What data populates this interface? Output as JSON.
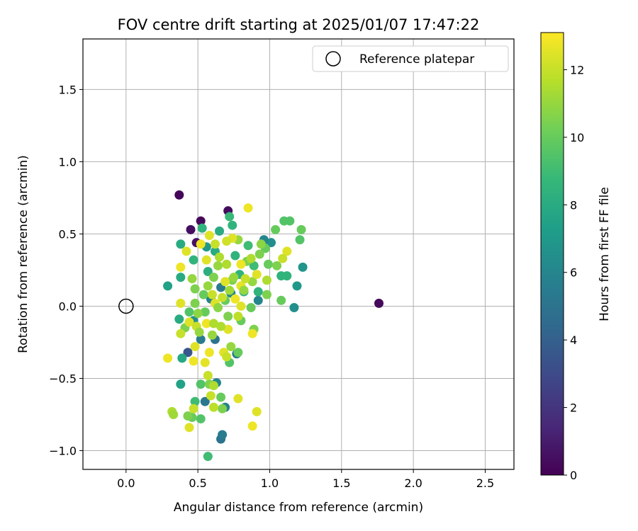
{
  "chart_data": {
    "type": "scatter",
    "title": "FOV centre drift starting at 2025/01/07 17:47:22",
    "xlabel": "Angular distance from reference (arcmin)",
    "ylabel": "Rotation from reference (arcmin)",
    "xlim": [
      -0.3,
      2.7
    ],
    "ylim": [
      -1.13,
      1.85
    ],
    "xticks": [
      0.0,
      0.5,
      1.0,
      1.5,
      2.0,
      2.5
    ],
    "xtick_labels": [
      "0.0",
      "0.5",
      "1.0",
      "1.5",
      "2.0",
      "2.5"
    ],
    "yticks": [
      -1.0,
      -0.5,
      0.0,
      0.5,
      1.0,
      1.5
    ],
    "ytick_labels": [
      "−1.0",
      "−0.5",
      "0.0",
      "0.5",
      "1.0",
      "1.5"
    ],
    "grid": true,
    "legend": {
      "placement": "top-right",
      "entries": [
        "Reference platepar"
      ]
    },
    "reference": {
      "name": "Reference platepar",
      "x": 0.0,
      "y": 0.0,
      "marker": "open-circle"
    },
    "colorbar": {
      "label": "Hours from first FF file",
      "colormap": "viridis",
      "range": [
        0,
        13.1
      ],
      "ticks": [
        0,
        2,
        4,
        6,
        8,
        10,
        12
      ],
      "tick_labels": [
        "0",
        "2",
        "4",
        "6",
        "8",
        "10",
        "12"
      ]
    },
    "points": [
      {
        "x": 0.37,
        "y": 0.77,
        "h": 0.2
      },
      {
        "x": 0.52,
        "y": 0.59,
        "h": 0.3
      },
      {
        "x": 0.71,
        "y": 0.66,
        "h": 0.4
      },
      {
        "x": 0.45,
        "y": 0.53,
        "h": 0.5
      },
      {
        "x": 0.49,
        "y": 0.44,
        "h": 0.6
      },
      {
        "x": 1.76,
        "y": 0.02,
        "h": 0.3
      },
      {
        "x": 0.43,
        "y": -0.32,
        "h": 3.5
      },
      {
        "x": 0.66,
        "y": -0.92,
        "h": 5.0
      },
      {
        "x": 0.67,
        "y": -0.89,
        "h": 5.5
      },
      {
        "x": 0.55,
        "y": -0.66,
        "h": 5.2
      },
      {
        "x": 0.69,
        "y": -0.7,
        "h": 5.8
      },
      {
        "x": 0.52,
        "y": -0.23,
        "h": 5.5
      },
      {
        "x": 0.62,
        "y": -0.23,
        "h": 5.0
      },
      {
        "x": 0.77,
        "y": -0.33,
        "h": 5.5
      },
      {
        "x": 0.63,
        "y": -0.53,
        "h": 6.0
      },
      {
        "x": 1.17,
        "y": -0.01,
        "h": 6.5
      },
      {
        "x": 1.23,
        "y": 0.27,
        "h": 6.8
      },
      {
        "x": 1.01,
        "y": 0.44,
        "h": 6.5
      },
      {
        "x": 0.92,
        "y": 0.04,
        "h": 6.0
      },
      {
        "x": 0.96,
        "y": 0.46,
        "h": 6.0
      },
      {
        "x": 0.66,
        "y": 0.13,
        "h": 5.5
      },
      {
        "x": 0.59,
        "y": 0.05,
        "h": 5.8
      },
      {
        "x": 0.73,
        "y": 0.09,
        "h": 6.2
      },
      {
        "x": 0.47,
        "y": -0.1,
        "h": 6.5
      },
      {
        "x": 0.56,
        "y": 0.41,
        "h": 7.0
      },
      {
        "x": 0.29,
        "y": 0.14,
        "h": 7.5
      },
      {
        "x": 0.38,
        "y": -0.54,
        "h": 7.5
      },
      {
        "x": 0.38,
        "y": 0.43,
        "h": 8.0
      },
      {
        "x": 0.38,
        "y": 0.2,
        "h": 8.0
      },
      {
        "x": 0.37,
        "y": -0.09,
        "h": 8.0
      },
      {
        "x": 0.39,
        "y": -0.36,
        "h": 7.8
      },
      {
        "x": 0.47,
        "y": 0.32,
        "h": 8.5
      },
      {
        "x": 0.53,
        "y": 0.54,
        "h": 8.5
      },
      {
        "x": 0.57,
        "y": 0.24,
        "h": 8.2
      },
      {
        "x": 0.62,
        "y": 0.38,
        "h": 8.0
      },
      {
        "x": 0.65,
        "y": 0.52,
        "h": 8.0
      },
      {
        "x": 0.72,
        "y": 0.62,
        "h": 8.8
      },
      {
        "x": 0.74,
        "y": 0.56,
        "h": 8.5
      },
      {
        "x": 0.76,
        "y": 0.35,
        "h": 8.5
      },
      {
        "x": 0.79,
        "y": 0.22,
        "h": 8.5
      },
      {
        "x": 0.82,
        "y": 0.1,
        "h": 8.5
      },
      {
        "x": 0.85,
        "y": 0.42,
        "h": 9.0
      },
      {
        "x": 0.89,
        "y": 0.28,
        "h": 9.0
      },
      {
        "x": 0.92,
        "y": 0.1,
        "h": 8.5
      },
      {
        "x": 1.08,
        "y": 0.21,
        "h": 8.5
      },
      {
        "x": 1.12,
        "y": 0.21,
        "h": 8.5
      },
      {
        "x": 1.19,
        "y": 0.14,
        "h": 7.0
      },
      {
        "x": 1.1,
        "y": 0.59,
        "h": 9.5
      },
      {
        "x": 1.14,
        "y": 0.59,
        "h": 9.5
      },
      {
        "x": 1.22,
        "y": 0.53,
        "h": 10.0
      },
      {
        "x": 1.21,
        "y": 0.46,
        "h": 9.5
      },
      {
        "x": 1.04,
        "y": 0.53,
        "h": 10.0
      },
      {
        "x": 0.97,
        "y": 0.4,
        "h": 10.0
      },
      {
        "x": 0.93,
        "y": 0.36,
        "h": 10.5
      },
      {
        "x": 0.99,
        "y": 0.29,
        "h": 10.0
      },
      {
        "x": 1.05,
        "y": 0.28,
        "h": 10.5
      },
      {
        "x": 1.08,
        "y": 0.04,
        "h": 10.0
      },
      {
        "x": 0.98,
        "y": 0.08,
        "h": 10.5
      },
      {
        "x": 0.87,
        "y": -0.01,
        "h": 10.0
      },
      {
        "x": 0.8,
        "y": -0.1,
        "h": 10.0
      },
      {
        "x": 0.89,
        "y": -0.16,
        "h": 10.5
      },
      {
        "x": 0.78,
        "y": -0.32,
        "h": 10.0
      },
      {
        "x": 0.72,
        "y": -0.39,
        "h": 9.5
      },
      {
        "x": 0.57,
        "y": -1.04,
        "h": 9.0
      },
      {
        "x": 0.52,
        "y": -0.78,
        "h": 9.5
      },
      {
        "x": 0.46,
        "y": -0.77,
        "h": 10.0
      },
      {
        "x": 0.43,
        "y": -0.76,
        "h": 10.5
      },
      {
        "x": 0.66,
        "y": -0.63,
        "h": 10.0
      },
      {
        "x": 0.67,
        "y": -0.71,
        "h": 10.5
      },
      {
        "x": 0.48,
        "y": -0.66,
        "h": 9.0
      },
      {
        "x": 0.52,
        "y": -0.54,
        "h": 9.5
      },
      {
        "x": 0.58,
        "y": -0.54,
        "h": 10.5
      },
      {
        "x": 0.41,
        "y": -0.15,
        "h": 10.5
      },
      {
        "x": 0.44,
        "y": -0.04,
        "h": 9.5
      },
      {
        "x": 0.48,
        "y": 0.02,
        "h": 10.5
      },
      {
        "x": 0.46,
        "y": 0.19,
        "h": 11.0
      },
      {
        "x": 0.48,
        "y": 0.12,
        "h": 10.5
      },
      {
        "x": 0.54,
        "y": 0.08,
        "h": 10.0
      },
      {
        "x": 0.55,
        "y": -0.04,
        "h": 10.0
      },
      {
        "x": 0.61,
        "y": 0.2,
        "h": 10.5
      },
      {
        "x": 0.64,
        "y": 0.28,
        "h": 11.0
      },
      {
        "x": 0.69,
        "y": 0.04,
        "h": 10.0
      },
      {
        "x": 0.71,
        "y": -0.07,
        "h": 10.5
      },
      {
        "x": 0.74,
        "y": 0.18,
        "h": 10.5
      },
      {
        "x": 0.78,
        "y": 0.46,
        "h": 11.0
      },
      {
        "x": 0.84,
        "y": 0.31,
        "h": 10.5
      },
      {
        "x": 0.88,
        "y": 0.17,
        "h": 11.0
      },
      {
        "x": 0.94,
        "y": 0.43,
        "h": 10.8
      },
      {
        "x": 0.32,
        "y": -0.73,
        "h": 11.5
      },
      {
        "x": 0.33,
        "y": -0.75,
        "h": 11.2
      },
      {
        "x": 0.47,
        "y": -0.71,
        "h": 12.0
      },
      {
        "x": 0.44,
        "y": -0.84,
        "h": 12.5
      },
      {
        "x": 0.59,
        "y": -0.62,
        "h": 12.0
      },
      {
        "x": 0.61,
        "y": -0.7,
        "h": 11.8
      },
      {
        "x": 0.78,
        "y": -0.64,
        "h": 12.5
      },
      {
        "x": 0.88,
        "y": -0.83,
        "h": 12.8
      },
      {
        "x": 0.91,
        "y": -0.73,
        "h": 12.5
      },
      {
        "x": 0.29,
        "y": -0.36,
        "h": 12.8
      },
      {
        "x": 0.48,
        "y": -0.28,
        "h": 12.5
      },
      {
        "x": 0.47,
        "y": -0.38,
        "h": 12.8
      },
      {
        "x": 0.55,
        "y": -0.39,
        "h": 12.6
      },
      {
        "x": 0.58,
        "y": -0.32,
        "h": 12.8
      },
      {
        "x": 0.57,
        "y": -0.48,
        "h": 12.0
      },
      {
        "x": 0.61,
        "y": -0.55,
        "h": 11.5
      },
      {
        "x": 0.68,
        "y": -0.32,
        "h": 12.5
      },
      {
        "x": 0.7,
        "y": -0.35,
        "h": 12.0
      },
      {
        "x": 0.38,
        "y": 0.02,
        "h": 12.5
      },
      {
        "x": 0.38,
        "y": -0.19,
        "h": 12.0
      },
      {
        "x": 0.44,
        "y": -0.11,
        "h": 12.5
      },
      {
        "x": 0.49,
        "y": -0.14,
        "h": 12.0
      },
      {
        "x": 0.56,
        "y": -0.12,
        "h": 12.8
      },
      {
        "x": 0.62,
        "y": 0.02,
        "h": 12.5
      },
      {
        "x": 0.67,
        "y": 0.06,
        "h": 12.0
      },
      {
        "x": 0.71,
        "y": -0.16,
        "h": 12.5
      },
      {
        "x": 0.76,
        "y": 0.05,
        "h": 12.8
      },
      {
        "x": 0.8,
        "y": 0.14,
        "h": 12.6
      },
      {
        "x": 0.8,
        "y": -0.0,
        "h": 12.5
      },
      {
        "x": 0.88,
        "y": -0.19,
        "h": 12.8
      },
      {
        "x": 0.83,
        "y": 0.19,
        "h": 12.0
      },
      {
        "x": 0.85,
        "y": 0.68,
        "h": 12.8
      },
      {
        "x": 0.74,
        "y": 0.47,
        "h": 12.5
      },
      {
        "x": 0.7,
        "y": 0.45,
        "h": 12.2
      },
      {
        "x": 0.58,
        "y": 0.49,
        "h": 12.5
      },
      {
        "x": 0.52,
        "y": 0.43,
        "h": 12.8
      },
      {
        "x": 0.42,
        "y": 0.38,
        "h": 12.5
      },
      {
        "x": 0.38,
        "y": 0.27,
        "h": 12.8
      },
      {
        "x": 0.56,
        "y": 0.32,
        "h": 12.5
      },
      {
        "x": 0.62,
        "y": 0.43,
        "h": 12.0
      },
      {
        "x": 0.8,
        "y": 0.29,
        "h": 12.8
      },
      {
        "x": 0.69,
        "y": 0.17,
        "h": 12.5
      },
      {
        "x": 0.6,
        "y": 0.08,
        "h": 12.0
      },
      {
        "x": 1.12,
        "y": 0.38,
        "h": 12.5
      },
      {
        "x": 1.09,
        "y": 0.33,
        "h": 12.0
      },
      {
        "x": 0.91,
        "y": 0.22,
        "h": 12.5
      },
      {
        "x": 0.98,
        "y": 0.18,
        "h": 11.5
      },
      {
        "x": 0.75,
        "y": 0.2,
        "h": 11.0
      },
      {
        "x": 0.66,
        "y": -0.14,
        "h": 11.5
      },
      {
        "x": 0.73,
        "y": -0.28,
        "h": 11.0
      },
      {
        "x": 0.51,
        "y": -0.18,
        "h": 11.0
      },
      {
        "x": 0.61,
        "y": -0.12,
        "h": 11.5
      },
      {
        "x": 0.78,
        "y": -0.07,
        "h": 11.8
      },
      {
        "x": 0.7,
        "y": 0.29,
        "h": 11.5
      },
      {
        "x": 0.65,
        "y": 0.34,
        "h": 11.5
      },
      {
        "x": 0.6,
        "y": -0.2,
        "h": 11.0
      },
      {
        "x": 0.82,
        "y": 0.11,
        "h": 11.0
      },
      {
        "x": 0.87,
        "y": 0.33,
        "h": 11.5
      },
      {
        "x": 0.5,
        "y": -0.05,
        "h": 10.8
      },
      {
        "x": 0.57,
        "y": 0.14,
        "h": 11.0
      },
      {
        "x": 0.64,
        "y": -0.01,
        "h": 10.8
      },
      {
        "x": 0.72,
        "y": 0.11,
        "h": 11.2
      }
    ]
  }
}
